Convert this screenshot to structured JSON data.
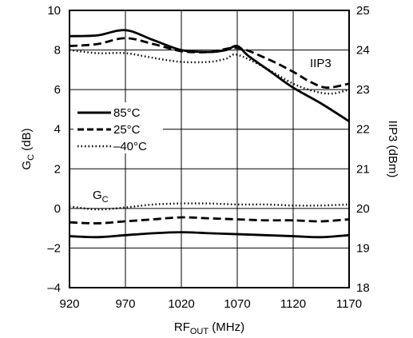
{
  "chart_data": {
    "type": "line",
    "x_axis": {
      "label": "RF",
      "label_sub": "OUT",
      "label_suffix": " (MHz)",
      "range": [
        920,
        1170
      ],
      "ticks": [
        "920",
        "970",
        "1020",
        "1070",
        "1120",
        "1170"
      ]
    },
    "y_left": {
      "label": "G",
      "label_sub": "C",
      "label_suffix": " (dB)",
      "range": [
        -4,
        10
      ],
      "ticks": [
        "–4",
        "–2",
        "0",
        "2",
        "4",
        "6",
        "8",
        "10"
      ]
    },
    "y_right": {
      "label": "IIP3 (dBm)",
      "range": [
        18,
        25
      ],
      "ticks": [
        "18",
        "19",
        "20",
        "21",
        "22",
        "23",
        "24",
        "25"
      ]
    },
    "grid": true,
    "annotations": {
      "iip3": "IIP3",
      "gc_main": "G",
      "gc_sub": "C"
    },
    "legend": {
      "placement": "left-middle",
      "entries": [
        {
          "label": "85°C",
          "style": "solid"
        },
        {
          "label": "25°C",
          "style": "dashed"
        },
        {
          "label": "–40°C",
          "style": "dotted"
        }
      ]
    },
    "series": [
      {
        "temp": "85°C",
        "quantity": "IIP3",
        "axis": "right",
        "style": "solid",
        "x": [
          920,
          945,
          970,
          995,
          1020,
          1045,
          1060,
          1070,
          1080,
          1100,
          1120,
          1145,
          1170
        ],
        "y": [
          24.35,
          24.37,
          24.5,
          24.25,
          24.0,
          23.95,
          24.0,
          24.1,
          23.85,
          23.45,
          23.05,
          22.65,
          22.2
        ]
      },
      {
        "temp": "25°C",
        "quantity": "IIP3",
        "axis": "right",
        "style": "dashed",
        "x": [
          920,
          945,
          970,
          995,
          1020,
          1045,
          1070,
          1095,
          1120,
          1135,
          1150,
          1170
        ],
        "y": [
          24.1,
          24.15,
          24.3,
          24.15,
          23.97,
          23.95,
          24.05,
          23.8,
          23.45,
          23.2,
          23.05,
          23.15
        ]
      },
      {
        "temp": "–40°C",
        "quantity": "IIP3",
        "axis": "right",
        "style": "dotted",
        "x": [
          920,
          945,
          970,
          995,
          1020,
          1045,
          1060,
          1070,
          1095,
          1120,
          1140,
          1155,
          1170
        ],
        "y": [
          24.0,
          23.92,
          23.92,
          23.8,
          23.7,
          23.7,
          23.78,
          23.88,
          23.55,
          23.15,
          22.95,
          22.9,
          23.0
        ]
      },
      {
        "temp": "85°C",
        "quantity": "GC",
        "axis": "left",
        "style": "solid",
        "x": [
          920,
          945,
          970,
          995,
          1020,
          1045,
          1070,
          1095,
          1120,
          1145,
          1170
        ],
        "y": [
          -1.4,
          -1.45,
          -1.35,
          -1.25,
          -1.2,
          -1.25,
          -1.3,
          -1.35,
          -1.4,
          -1.45,
          -1.35
        ]
      },
      {
        "temp": "25°C",
        "quantity": "GC",
        "axis": "left",
        "style": "dashed",
        "x": [
          920,
          945,
          970,
          995,
          1020,
          1045,
          1070,
          1095,
          1120,
          1145,
          1170
        ],
        "y": [
          -0.7,
          -0.75,
          -0.65,
          -0.55,
          -0.45,
          -0.5,
          -0.55,
          -0.6,
          -0.6,
          -0.65,
          -0.55
        ]
      },
      {
        "temp": "–40°C",
        "quantity": "GC",
        "axis": "left",
        "style": "dotted",
        "x": [
          920,
          945,
          970,
          995,
          1020,
          1045,
          1070,
          1095,
          1120,
          1145,
          1170
        ],
        "y": [
          0.1,
          -0.05,
          0.05,
          0.2,
          0.25,
          0.25,
          0.2,
          0.2,
          0.15,
          0.15,
          0.2
        ]
      }
    ]
  }
}
